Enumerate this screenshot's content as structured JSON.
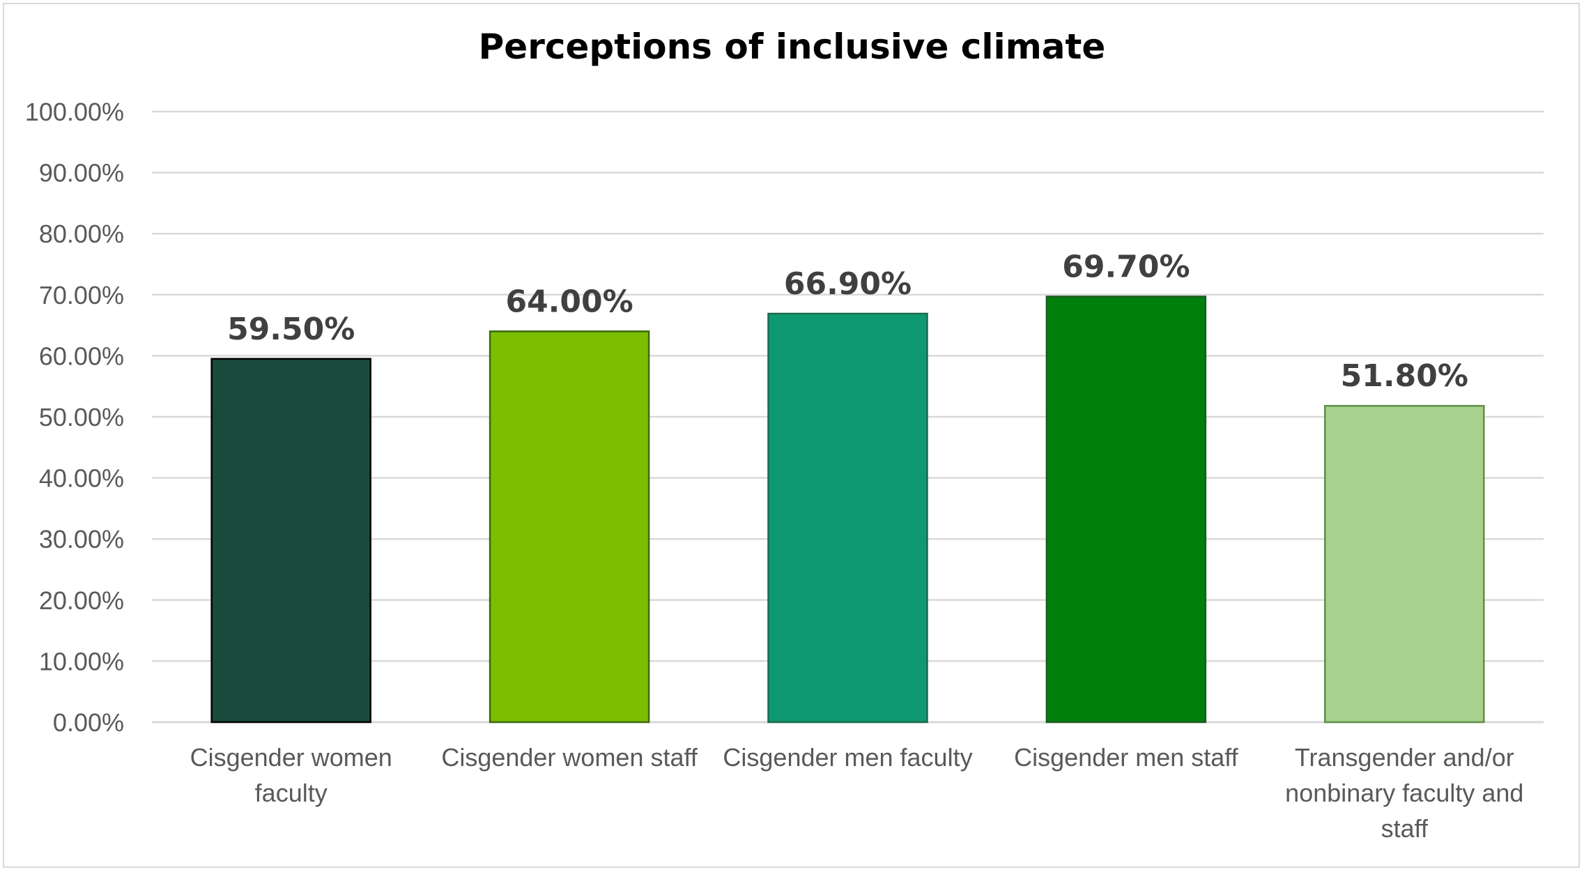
{
  "chart_data": {
    "type": "bar",
    "title": "Perceptions of inclusive climate",
    "categories": [
      [
        "Cisgender women",
        "faculty"
      ],
      [
        "Cisgender women staff"
      ],
      [
        "Cisgender men faculty"
      ],
      [
        "Cisgender men staff"
      ],
      [
        "Transgender and/or",
        "nonbinary faculty and",
        "staff"
      ]
    ],
    "values": [
      59.5,
      64.0,
      66.9,
      69.7,
      51.8
    ],
    "data_labels": [
      "59.50%",
      "64.00%",
      "66.90%",
      "69.70%",
      "51.80%"
    ],
    "bar_colors": [
      "#1a4a3c",
      "#7cbe00",
      "#0f9970",
      "#007f0d",
      "#a8d18d"
    ],
    "bar_border_colors": [
      "#000000",
      "#3a6a10",
      "#1a6a50",
      "#1e5a1e",
      "#5f8f45"
    ],
    "ylim": [
      0,
      100
    ],
    "yticks": [
      0,
      10,
      20,
      30,
      40,
      50,
      60,
      70,
      80,
      90,
      100
    ],
    "ytick_labels": [
      "0.00%",
      "10.00%",
      "20.00%",
      "30.00%",
      "40.00%",
      "50.00%",
      "60.00%",
      "70.00%",
      "80.00%",
      "90.00%",
      "100.00%"
    ],
    "grid": true,
    "grid_color": "#d9d9d9",
    "legend": "none"
  }
}
